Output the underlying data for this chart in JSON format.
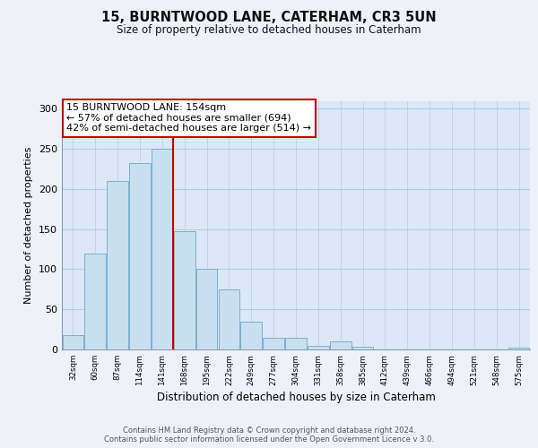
{
  "title": "15, BURNTWOOD LANE, CATERHAM, CR3 5UN",
  "subtitle": "Size of property relative to detached houses in Caterham",
  "xlabel": "Distribution of detached houses by size in Caterham",
  "ylabel": "Number of detached properties",
  "bar_color": "#c8dff0",
  "bar_edge_color": "#7ab0d4",
  "background_color": "#eef2f8",
  "plot_bg_color": "#dce8f5",
  "grid_color": "#b8ccdf",
  "bin_labels": [
    "32sqm",
    "60sqm",
    "87sqm",
    "114sqm",
    "141sqm",
    "168sqm",
    "195sqm",
    "222sqm",
    "249sqm",
    "277sqm",
    "304sqm",
    "331sqm",
    "358sqm",
    "385sqm",
    "412sqm",
    "439sqm",
    "466sqm",
    "494sqm",
    "521sqm",
    "548sqm",
    "575sqm"
  ],
  "bar_heights": [
    18,
    120,
    210,
    232,
    250,
    148,
    100,
    75,
    35,
    14,
    14,
    5,
    10,
    3,
    0,
    0,
    0,
    0,
    0,
    0,
    2
  ],
  "property_line_x": 154,
  "bin_edges_numeric": [
    32,
    60,
    87,
    114,
    141,
    168,
    195,
    222,
    249,
    277,
    304,
    331,
    358,
    385,
    412,
    439,
    466,
    494,
    521,
    548,
    575
  ],
  "bin_width": 27,
  "annotation_title": "15 BURNTWOOD LANE: 154sqm",
  "annotation_line1": "← 57% of detached houses are smaller (694)",
  "annotation_line2": "42% of semi-detached houses are larger (514) →",
  "annotation_box_color": "#ffffff",
  "annotation_box_edge": "#cc0000",
  "vline_color": "#cc0000",
  "ylim": [
    0,
    310
  ],
  "yticks": [
    0,
    50,
    100,
    150,
    200,
    250,
    300
  ],
  "footer1": "Contains HM Land Registry data © Crown copyright and database right 2024.",
  "footer2": "Contains public sector information licensed under the Open Government Licence v 3.0."
}
